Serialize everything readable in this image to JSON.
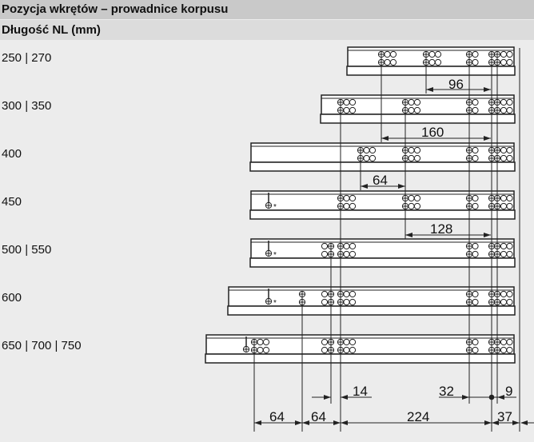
{
  "header": {
    "title": "Pozycja wkrętów – prowadnice korpusu",
    "column_label": "Długość NL (mm)"
  },
  "rows": [
    {
      "label": "250 | 270"
    },
    {
      "label": "300 | 350"
    },
    {
      "label": "400"
    },
    {
      "label": "450"
    },
    {
      "label": "500 | 550"
    },
    {
      "label": "600"
    },
    {
      "label": "650 | 700 | 750"
    }
  ],
  "dimensions": {
    "d96": "96",
    "d160": "160",
    "d64a": "64",
    "d128": "128",
    "d14": "14",
    "d32": "32",
    "d9": "9",
    "d64b": "64",
    "d64c": "64",
    "d224": "224",
    "d37": "37"
  },
  "colors": {
    "line": "#222222",
    "rail_fill": "#ffffff",
    "header": "#c9c9c9",
    "subheader": "#dcdcdc",
    "background": "#ececec"
  }
}
